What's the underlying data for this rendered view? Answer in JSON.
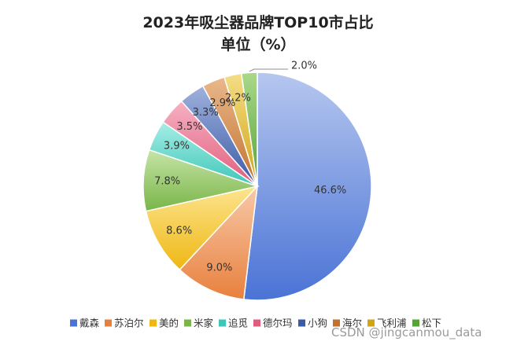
{
  "chart_data": {
    "type": "pie",
    "title": "2023年吸尘器品牌TOP10市占比",
    "subtitle": "单位（%）",
    "categories": [
      "戴森",
      "苏泊尔",
      "美的",
      "米家",
      "追觅",
      "德尔玛",
      "小狗",
      "海尔",
      "飞利浦",
      "松下"
    ],
    "values": [
      46.6,
      9.0,
      8.6,
      7.8,
      3.9,
      3.5,
      3.3,
      2.9,
      2.2,
      2.0
    ],
    "labels": [
      "46.6%",
      "9.0%",
      "8.6%",
      "7.8%",
      "3.9%",
      "3.5%",
      "3.3%",
      "2.9%",
      "2.2%",
      "2.0%"
    ],
    "colors": [
      [
        "#b6c7ef",
        "#4a73d6"
      ],
      [
        "#f8c9a8",
        "#e8803d"
      ],
      [
        "#fde48f",
        "#eeb713"
      ],
      [
        "#c6e4a7",
        "#79b548"
      ],
      [
        "#a6eee6",
        "#3ec6b8"
      ],
      [
        "#f7b1c2",
        "#df5d7d"
      ],
      [
        "#9fb1dc",
        "#3b5ba8"
      ],
      [
        "#e9b88b",
        "#c2722f"
      ],
      [
        "#f4dd86",
        "#cfa417"
      ],
      [
        "#a9d98a",
        "#58a23a"
      ]
    ],
    "legend_position": "bottom"
  },
  "watermark": "CSDN @jingcanmou_data"
}
